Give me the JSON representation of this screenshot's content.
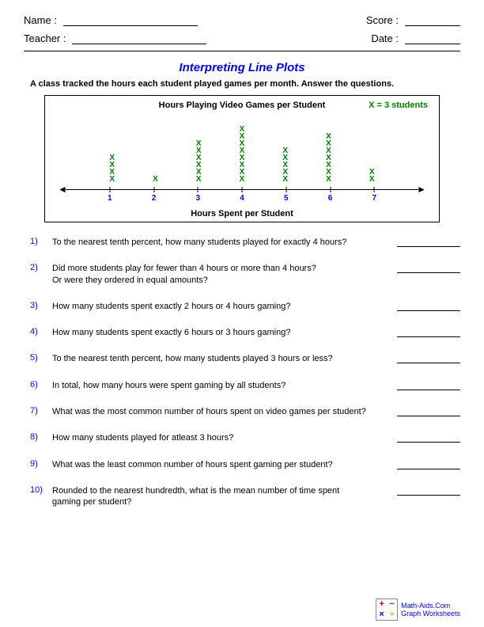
{
  "header": {
    "name_label": "Name :",
    "teacher_label": "Teacher :",
    "score_label": "Score :",
    "date_label": "Date :"
  },
  "title": "Interpreting Line Plots",
  "subtitle": "A class tracked the hours each student played games per month. Answer the questions.",
  "plot": {
    "title": "Hours Playing Video Games per Student",
    "legend": "X = 3 students",
    "axis_title": "Hours Spent per Student",
    "mark_glyph": "X",
    "mark_color": "#008000",
    "tick_color": "#0000ff",
    "categories": [
      1,
      2,
      3,
      4,
      5,
      6,
      7
    ],
    "counts": [
      4,
      1,
      6,
      8,
      5,
      7,
      2
    ],
    "positions_pct": [
      12.5,
      25,
      37.5,
      50,
      62.5,
      75,
      87.5
    ]
  },
  "questions": [
    "To the nearest tenth percent, how many students played for exactly 4 hours?",
    "Did more students play for fewer than 4 hours or more than 4 hours?\nOr were they ordered in equal amounts?",
    "How many students spent exactly 2 hours or 4 hours gaming?",
    "How many students spent exactly 6 hours or 3 hours gaming?",
    "To the nearest tenth percent, how many students played 3 hours or less?",
    "In total, how many hours were spent gaming by all students?",
    "What was the most common number of hours spent on video games per student?",
    "How many students played for atleast 3 hours?",
    "What was the least common number of hours spent gaming per student?",
    "Rounded to the nearest hundredth, what is the mean number of time spent\ngaming per student?"
  ],
  "footer": {
    "site": "Math-Aids.Com",
    "section": "Graph Worksheets",
    "logo_cells": [
      "+",
      "−",
      "×",
      "÷"
    ],
    "logo_colors": [
      "#d00000",
      "#008000",
      "#0000ff",
      "#f0a000"
    ]
  }
}
